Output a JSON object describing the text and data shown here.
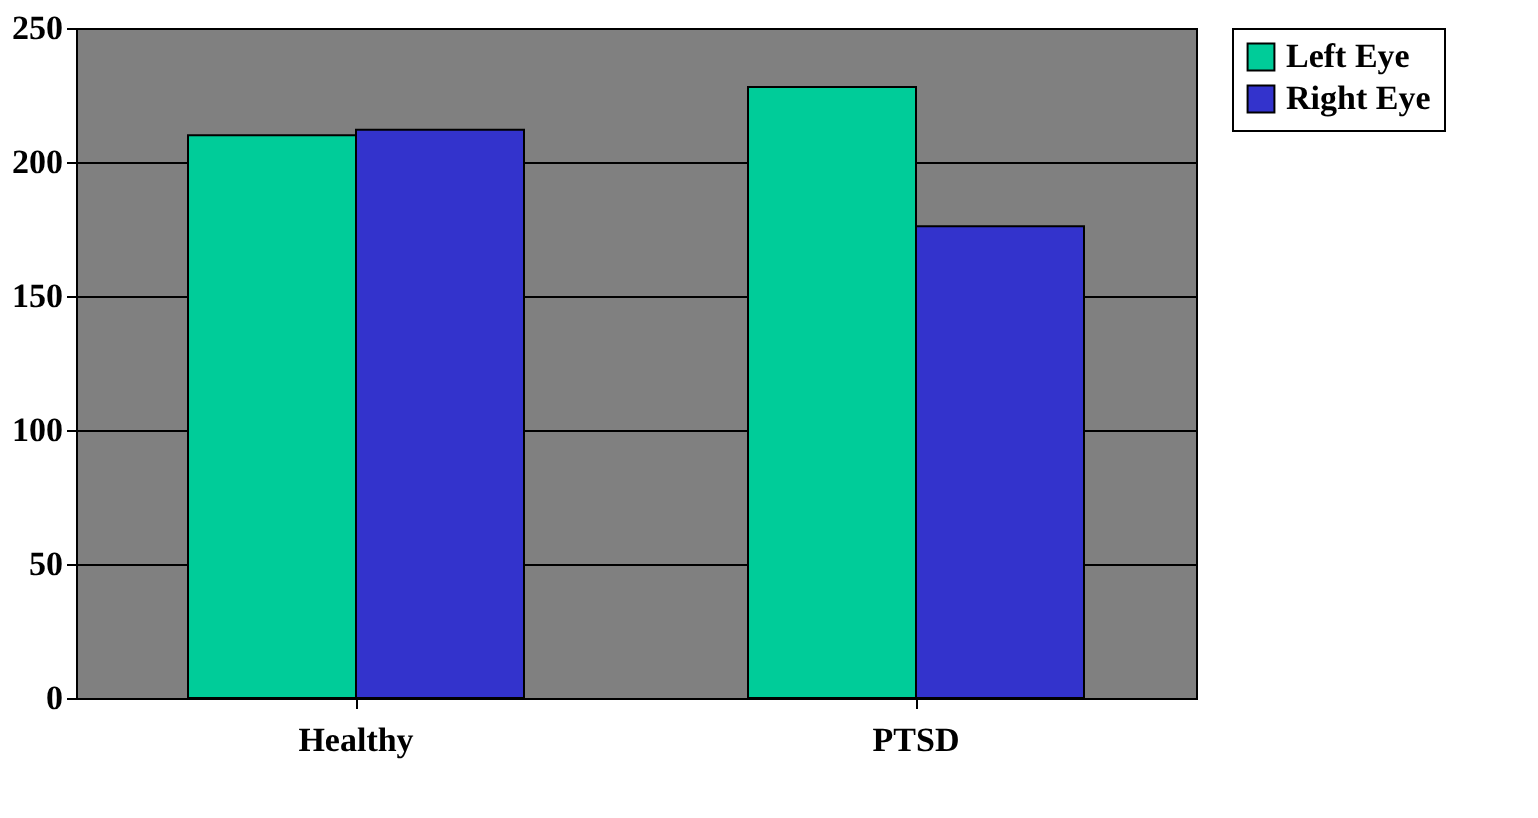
{
  "chart_data": {
    "type": "bar",
    "categories": [
      "Healthy",
      "PTSD"
    ],
    "series": [
      {
        "name": "Left Eye",
        "color": "#00cc99",
        "values": [
          210,
          228
        ]
      },
      {
        "name": "Right Eye",
        "color": "#3333cc",
        "values": [
          212,
          176
        ]
      }
    ],
    "ylim": [
      0,
      250
    ],
    "yticks": [
      0,
      50,
      100,
      150,
      200,
      250
    ],
    "grid": "y",
    "legend": "right"
  }
}
